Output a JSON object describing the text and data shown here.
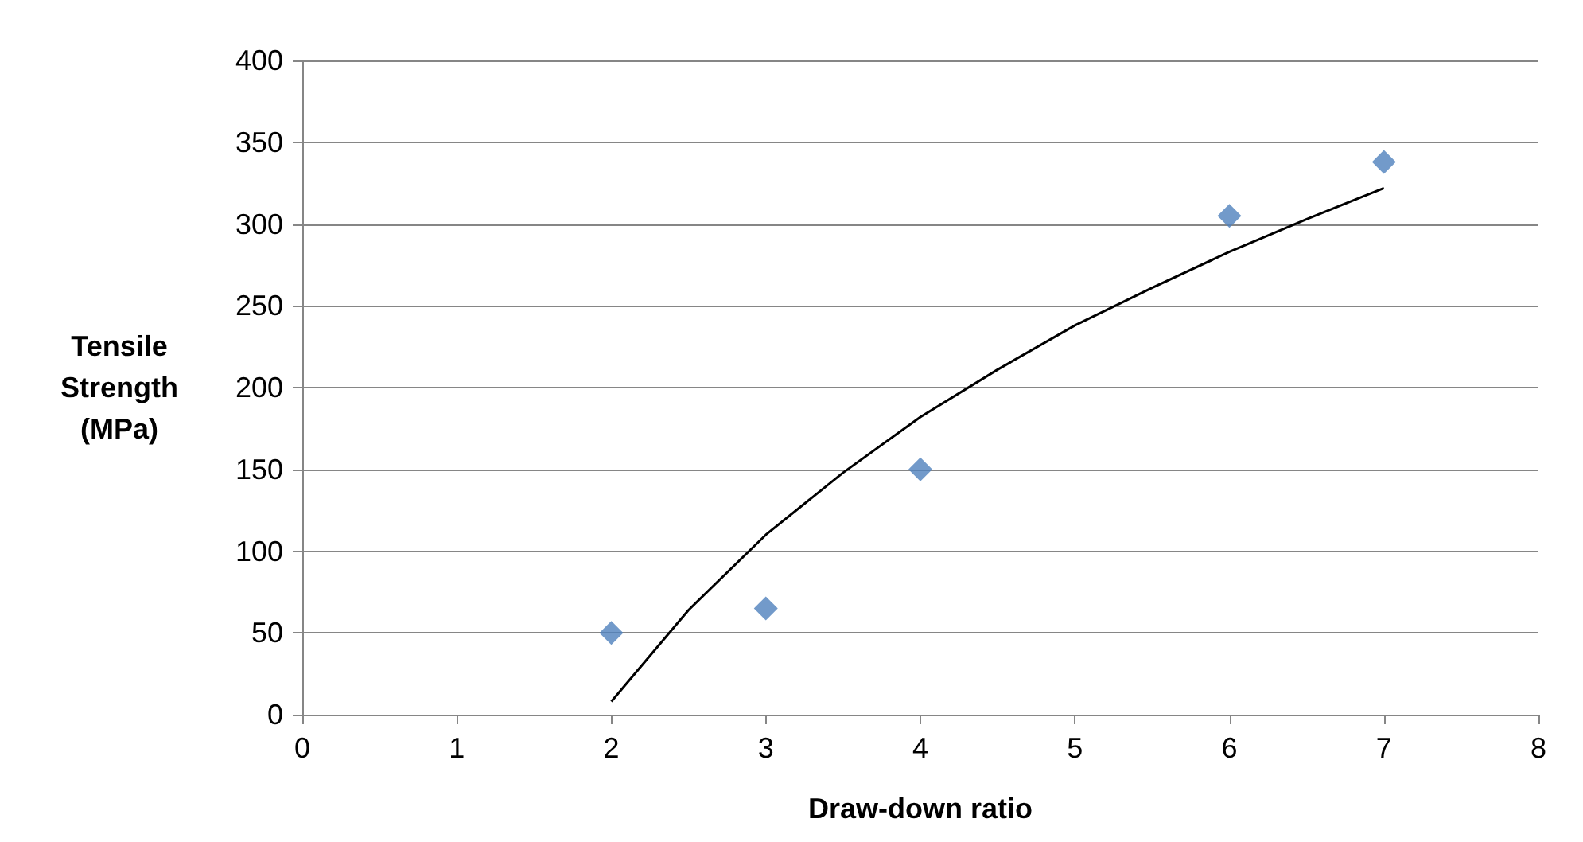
{
  "chart_data": {
    "type": "scatter",
    "xlabel": "Draw-down ratio",
    "ylabel": "Tensile Strength (MPa)",
    "xlim": [
      0,
      8
    ],
    "xticks": [
      0,
      1,
      2,
      3,
      4,
      5,
      6,
      7,
      8
    ],
    "ylim": [
      0,
      400
    ],
    "yticks": [
      0,
      50,
      100,
      150,
      200,
      250,
      300,
      350,
      400
    ],
    "grid": "y",
    "marker": "diamond",
    "series": [
      {
        "color": "#4f81bd",
        "x": [
          2,
          3,
          4,
          6,
          7
        ],
        "values": [
          50,
          65,
          150,
          305,
          338
        ]
      },
      {
        "type": "line",
        "color": "#000000",
        "marker": "none",
        "x": [
          2,
          2.5,
          3,
          3.5,
          4,
          4.5,
          5,
          5.5,
          6,
          6.5,
          7
        ],
        "values": [
          8,
          64,
          110,
          148,
          182,
          211,
          238,
          261,
          283,
          303,
          322
        ]
      }
    ]
  }
}
